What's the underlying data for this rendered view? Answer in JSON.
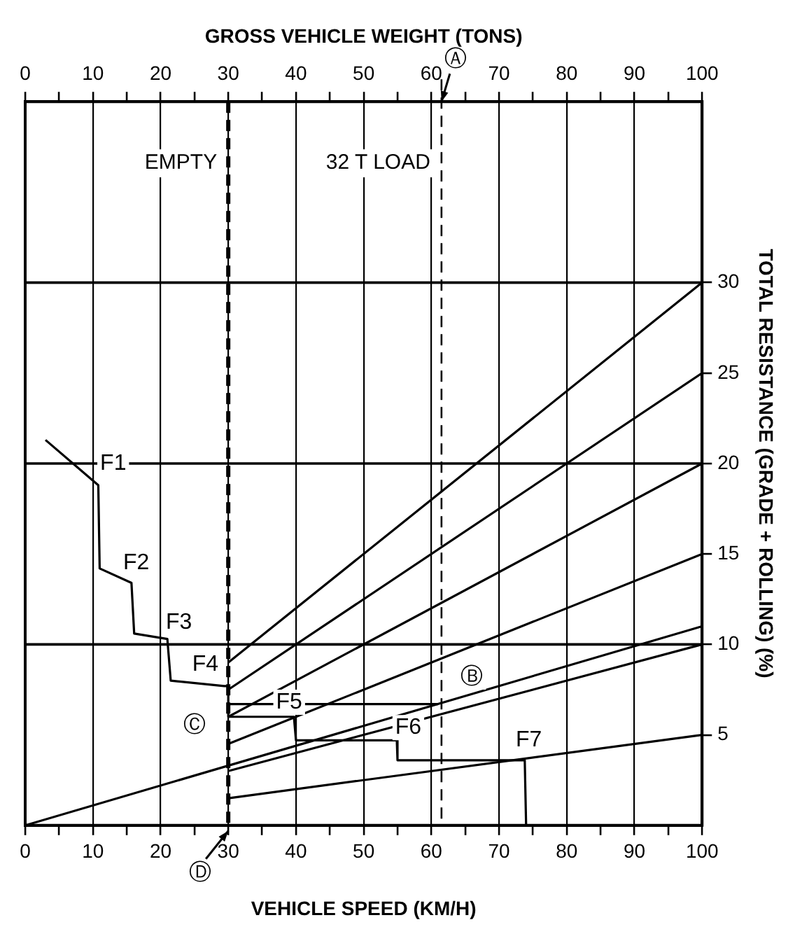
{
  "chart_data": {
    "type": "line",
    "xlabel": "VEHICLE SPEED (KM/H)",
    "x2label": "GROSS VEHICLE WEIGHT (TONS)",
    "ylabel": "TOTAL RESISTANCE (GRADE + ROLLING) (%)",
    "xlim": [
      0,
      100
    ],
    "xticks": [
      0,
      {
        "value": 5,
        "label": null
      },
      10,
      {
        "value": 15,
        "label": null
      },
      20,
      {
        "value": 25,
        "label": null
      },
      30,
      {
        "value": 35,
        "label": null
      },
      40,
      {
        "value": 45,
        "label": null
      },
      50,
      {
        "value": 55,
        "label": null
      },
      60,
      {
        "value": 65,
        "label": null
      },
      70,
      {
        "value": 75,
        "label": null
      },
      80,
      {
        "value": 85,
        "label": null
      },
      90,
      {
        "value": 95,
        "label": null
      },
      100
    ],
    "x2lim": [
      0,
      100
    ],
    "x2ticks": [
      0,
      {
        "value": 5,
        "label": null
      },
      10,
      {
        "value": 15,
        "label": null
      },
      20,
      {
        "value": 25,
        "label": null
      },
      30,
      {
        "value": 35,
        "label": null
      },
      40,
      {
        "value": 45,
        "label": null
      },
      50,
      {
        "value": 55,
        "label": null
      },
      60,
      {
        "value": 65,
        "label": null
      },
      70,
      {
        "value": 75,
        "label": null
      },
      80,
      {
        "value": 85,
        "label": null
      },
      90,
      {
        "value": 95,
        "label": null
      },
      100
    ],
    "ylim": [
      0,
      40
    ],
    "yticks": [
      5,
      10,
      15,
      20,
      25,
      30
    ],
    "grid": "x",
    "marker": "none",
    "series": [
      {
        "color": "#000000",
        "x": [
          3,
          10.8,
          11,
          15.7,
          16.1,
          21,
          21.5,
          29.4,
          30,
          30,
          39.7,
          40,
          54.9,
          55,
          73.8,
          74
        ],
        "values": [
          21.3,
          18.8,
          14.2,
          13.4,
          10.6,
          10.3,
          8,
          7.7,
          7.7,
          6,
          6,
          4.7,
          4.7,
          3.6,
          3.6,
          0
        ]
      },
      {
        "color": "#000000",
        "x": [
          30,
          61
        ],
        "values": [
          6.7,
          6.7
        ]
      },
      {
        "color": "#000000",
        "x": [
          30,
          100
        ],
        "values": [
          9,
          30
        ]
      },
      {
        "color": "#000000",
        "x": [
          30,
          100
        ],
        "values": [
          7.5,
          25
        ]
      },
      {
        "color": "#000000",
        "x": [
          30,
          100
        ],
        "values": [
          6,
          20
        ]
      },
      {
        "color": "#000000",
        "x": [
          30,
          100
        ],
        "values": [
          4.5,
          15
        ]
      },
      {
        "color": "#000000",
        "x": [
          0,
          100
        ],
        "values": [
          0,
          11
        ]
      },
      {
        "color": "#000000",
        "x": [
          30,
          100
        ],
        "values": [
          3,
          10
        ]
      },
      {
        "color": "#000000",
        "x": [
          30,
          100
        ],
        "values": [
          1.5,
          5
        ]
      }
    ],
    "ref_lines": [
      {
        "axis": "x",
        "value": 30,
        "label": "EMPTY",
        "line_style": "dashed"
      },
      {
        "axis": "x2",
        "value": 61.5,
        "label": "32 T LOAD",
        "line_style": "dashed"
      },
      {
        "axis": "y",
        "value": 10
      },
      {
        "axis": "y",
        "value": 20
      },
      {
        "axis": "y",
        "value": 30
      }
    ],
    "annotations": [
      {
        "text": "F1",
        "x": 13,
        "y": 20
      },
      {
        "text": "F2",
        "x": 16.4,
        "y": 14.5
      },
      {
        "text": "F3",
        "x": 22.7,
        "y": 11.2
      },
      {
        "text": "F4",
        "x": 26.6,
        "y": 8.9
      },
      {
        "text": "F5",
        "x": 39,
        "y": 6.8
      },
      {
        "text": "F6",
        "x": 56.6,
        "y": 5.4
      },
      {
        "text": "F7",
        "x": 74.4,
        "y": 4.7
      },
      {
        "text": "Ⓐ",
        "x": 61.5
      },
      {
        "text": "Ⓑ",
        "x": 66,
        "y": 8.2
      },
      {
        "text": "Ⓒ",
        "x": 25,
        "y": 5.5
      },
      {
        "text": "Ⓓ",
        "x": 30
      }
    ]
  }
}
